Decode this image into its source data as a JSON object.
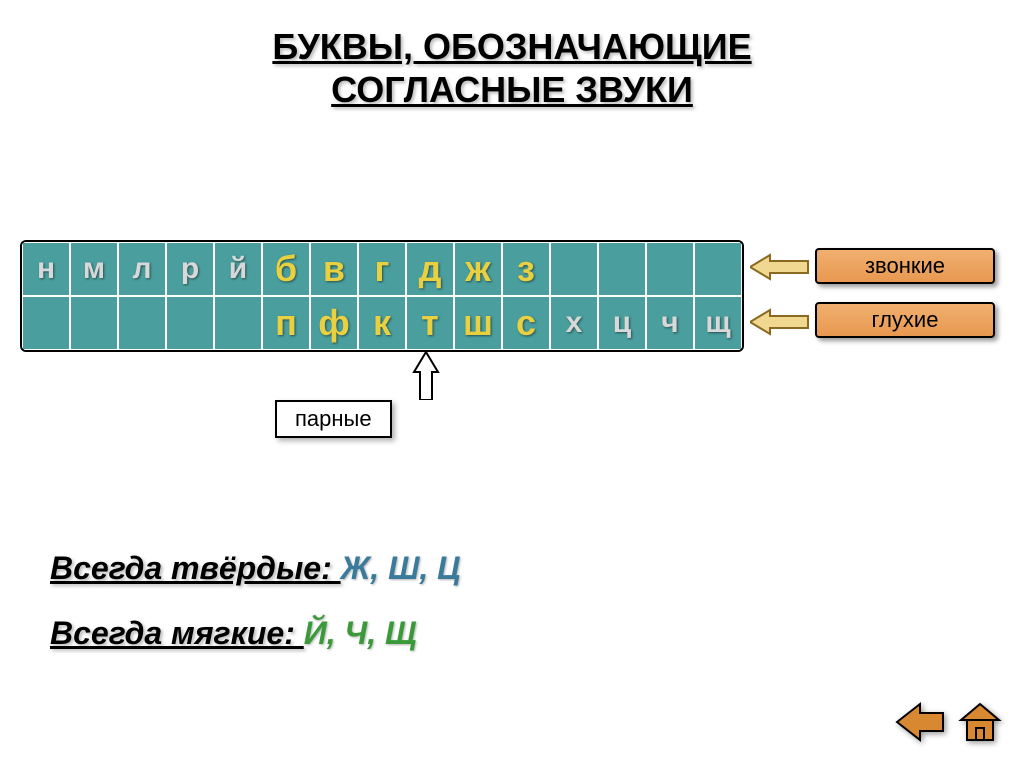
{
  "title_line1": "БУКВЫ,  ОБОЗНАЧАЮЩИЕ",
  "title_line2": "СОГЛАСНЫЕ ЗВУКИ",
  "table": {
    "type": "table",
    "cell_bg": "#4a9e9e",
    "cell_border": "#ffffff",
    "rows": 2,
    "cols": 15,
    "cells": [
      [
        {
          "t": "н",
          "c": "#d8d8d8",
          "big": false
        },
        {
          "t": "м",
          "c": "#d8d8d8",
          "big": false
        },
        {
          "t": "л",
          "c": "#d8d8d8",
          "big": false
        },
        {
          "t": "р",
          "c": "#d8d8d8",
          "big": false
        },
        {
          "t": "й",
          "c": "#d8d8d8",
          "big": false
        },
        {
          "t": "б",
          "c": "#e8d040",
          "big": true
        },
        {
          "t": "в",
          "c": "#e8d040",
          "big": true
        },
        {
          "t": "г",
          "c": "#e8d040",
          "big": true
        },
        {
          "t": "д",
          "c": "#e8d040",
          "big": true
        },
        {
          "t": "ж",
          "c": "#e8d040",
          "big": true
        },
        {
          "t": "з",
          "c": "#e8d040",
          "big": true
        },
        {
          "t": "",
          "c": "#d8d8d8",
          "big": false
        },
        {
          "t": "",
          "c": "#d8d8d8",
          "big": false
        },
        {
          "t": "",
          "c": "#d8d8d8",
          "big": false
        },
        {
          "t": "",
          "c": "#d8d8d8",
          "big": false
        }
      ],
      [
        {
          "t": "",
          "c": "#d8d8d8",
          "big": false
        },
        {
          "t": "",
          "c": "#d8d8d8",
          "big": false
        },
        {
          "t": "",
          "c": "#d8d8d8",
          "big": false
        },
        {
          "t": "",
          "c": "#d8d8d8",
          "big": false
        },
        {
          "t": "",
          "c": "#d8d8d8",
          "big": false
        },
        {
          "t": "п",
          "c": "#e8d040",
          "big": true
        },
        {
          "t": "ф",
          "c": "#e8d040",
          "big": true
        },
        {
          "t": "к",
          "c": "#e8d040",
          "big": true
        },
        {
          "t": "т",
          "c": "#e8d040",
          "big": true
        },
        {
          "t": "ш",
          "c": "#e8d040",
          "big": true
        },
        {
          "t": "с",
          "c": "#e8d040",
          "big": true
        },
        {
          "t": "х",
          "c": "#d8d8d8",
          "big": false
        },
        {
          "t": "ц",
          "c": "#d8d8d8",
          "big": false
        },
        {
          "t": "ч",
          "c": "#d8d8d8",
          "big": false
        },
        {
          "t": "щ",
          "c": "#d8d8d8",
          "big": false
        }
      ]
    ]
  },
  "labels": {
    "zvonkie": "звонкие",
    "gluhie": "глухие",
    "parnye": "парные"
  },
  "label_bg": "#e89850",
  "arrow_fill": "#f0d890",
  "arrow_stroke": "#8a6a20",
  "footer": {
    "hard_label": "Всегда твёрдые: ",
    "hard_letters": "Ж, Ш, Ц",
    "hard_color": "#3a7a9a",
    "soft_label": "Всегда мягкие: ",
    "soft_letters": "Й, Ч, Щ",
    "soft_color": "#3a9a3a"
  },
  "nav": {
    "btn_fill": "#d88830",
    "btn_stroke": "#000000"
  }
}
